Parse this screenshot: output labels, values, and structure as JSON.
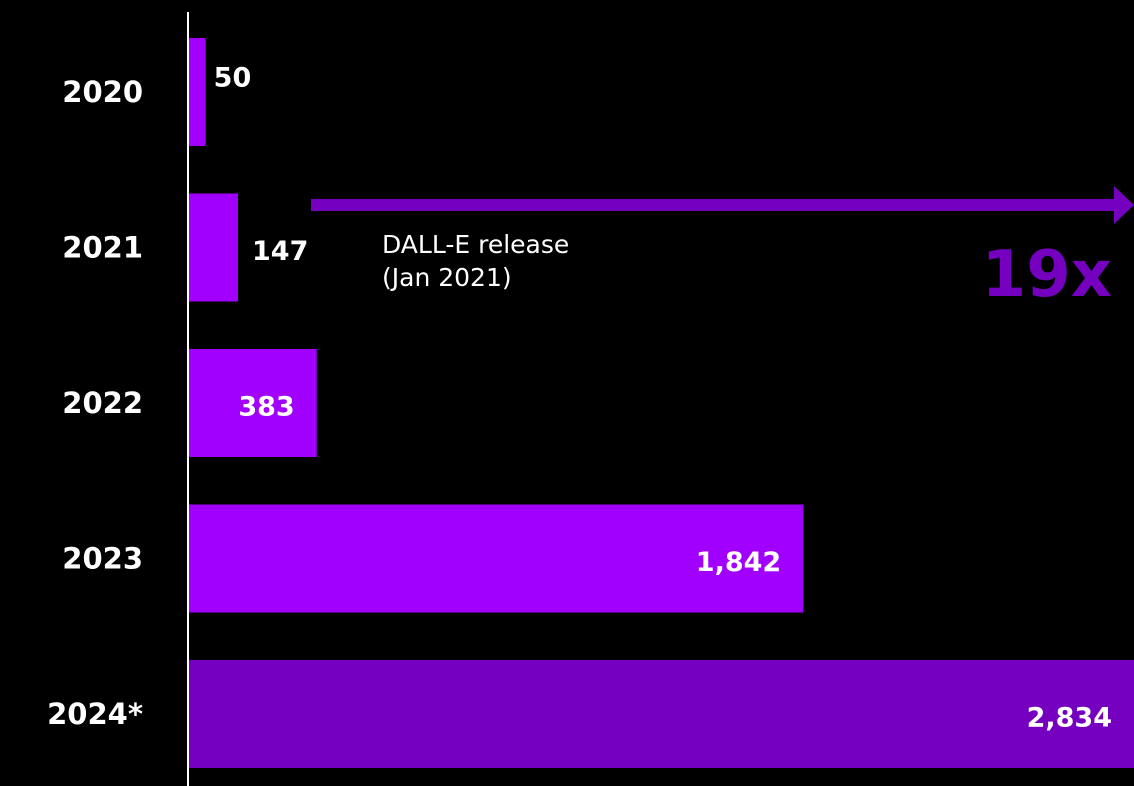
{
  "chart_data": {
    "type": "bar",
    "orientation": "horizontal",
    "categories": [
      "2020",
      "2021",
      "2022",
      "2023",
      "2024*"
    ],
    "values": [
      50,
      147,
      383,
      1842,
      2834
    ],
    "value_labels": [
      "50",
      "147",
      "383",
      "1,842",
      "2,834"
    ],
    "bar_colors": [
      "#a100ff",
      "#a100ff",
      "#a100ff",
      "#a100ff",
      "#7500c0"
    ],
    "xlim": [
      0,
      2834
    ],
    "grid": false,
    "legend": "none"
  },
  "annotations": {
    "release_line1": "DALL-E release",
    "release_line2": "(Jan 2021)",
    "multiplier": "19x"
  },
  "colors": {
    "background": "#000000",
    "bar": "#a100ff",
    "bar_projected": "#7500c0",
    "arrow": "#7500c0",
    "multiplier": "#7500c0",
    "axis": "#ffffff",
    "text": "#ffffff"
  }
}
